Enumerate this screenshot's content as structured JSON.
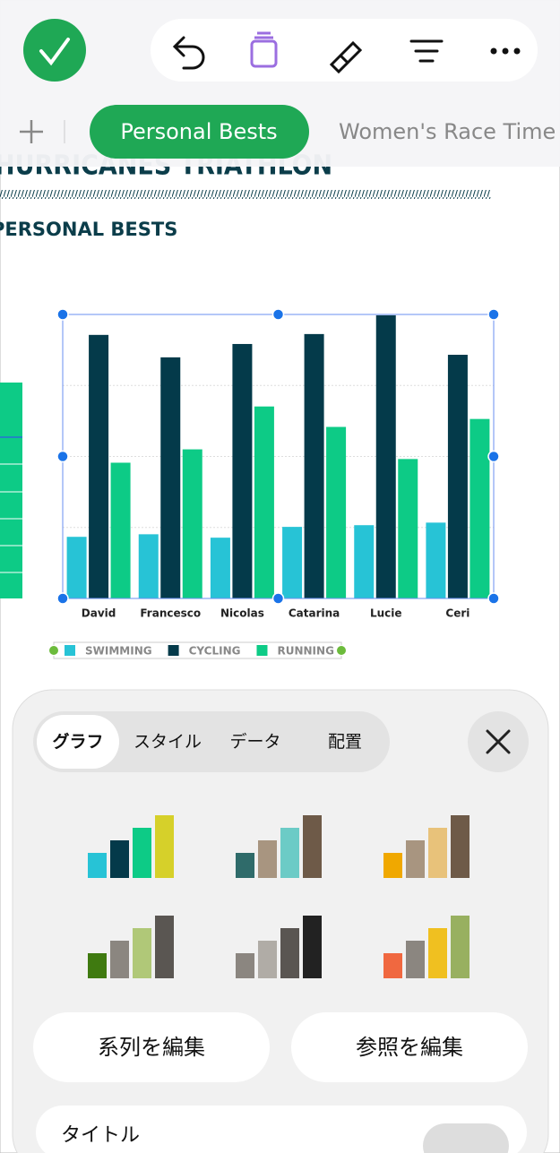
{
  "tabs": [
    "Personal Bests",
    "Women's Race Time"
  ],
  "document": {
    "title": "HURRICANES TRIATHLON",
    "subtitle": "PERSONAL BESTS"
  },
  "chart_data": {
    "type": "bar",
    "categories": [
      "David",
      "Francesco",
      "Nicolas",
      "Catarina",
      "Lucie",
      "Ceri"
    ],
    "series": [
      {
        "name": "SWIMMING",
        "color": "#27c3d6",
        "values": [
          21.7,
          22.6,
          21.4,
          25.2,
          25.8,
          26.7
        ]
      },
      {
        "name": "CYCLING",
        "color": "#043a4a",
        "values": [
          92.8,
          84.9,
          89.6,
          93.1,
          99.7,
          85.8
        ]
      },
      {
        "name": "RUNNING",
        "color": "#0dcb86",
        "values": [
          47.8,
          52.5,
          67.6,
          60.4,
          49.1,
          63.2
        ]
      }
    ],
    "ylim": [
      0,
      100
    ]
  },
  "panel": {
    "segments": [
      "グラフ",
      "スタイル",
      "データ",
      "配置"
    ],
    "buttons": [
      "系列を編集",
      "参照を編集"
    ],
    "row_label": "タイトル"
  }
}
